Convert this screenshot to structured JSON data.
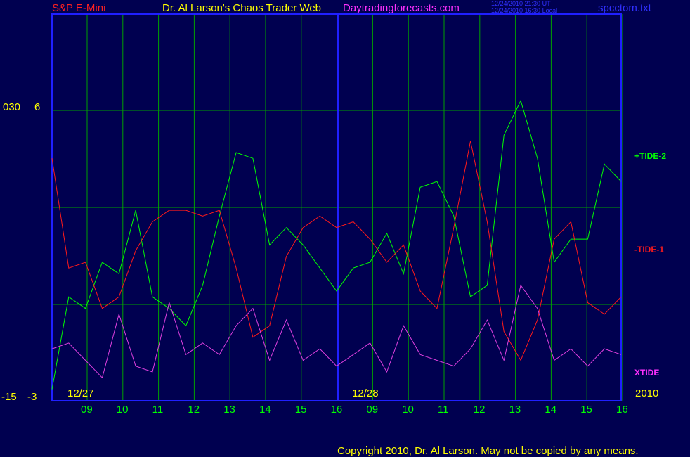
{
  "header": {
    "instrument": "S&P E-Mini",
    "title": "Dr. Al Larson's Chaos Trader Web",
    "site": "Daytradingforecasts.com",
    "ut_time": "12/24/2010 21:30 UT",
    "local_time": "12/24/2010 16:30 Local",
    "filename": "spcctom.txt"
  },
  "footer": {
    "copyright": "Copyright 2010, Dr. Al Larson. May not be copied by any means."
  },
  "colors": {
    "background": "#000050",
    "grid": "#00a000",
    "axis": "#2020ff",
    "tide2": "#00ff00",
    "tide1": "#ff1a1a",
    "xtide": "#e040e0",
    "label_yellow": "#ffff00",
    "label_red": "#ff2020",
    "label_magenta": "#ff30ff"
  },
  "chart_data": {
    "type": "line",
    "title": "",
    "xlabel": "",
    "ylabel": "",
    "y_axis_left_labels": [
      "030",
      "6",
      "-15",
      "-3"
    ],
    "date_labels": [
      "12/27",
      "12/28",
      "2010"
    ],
    "hour_labels": [
      "09",
      "10",
      "11",
      "12",
      "13",
      "14",
      "15",
      "16",
      "09",
      "10",
      "11",
      "12",
      "13",
      "14",
      "15",
      "16"
    ],
    "x": [
      9.0,
      9.5,
      9.75,
      10.0,
      10.5,
      10.75,
      10.8,
      11.0,
      11.5,
      11.75,
      12.0,
      13.0,
      13.5,
      14.0,
      15.0,
      15.5,
      16.0,
      16.25,
      16.5,
      9.0,
      9.5,
      10.0,
      10.1,
      10.25,
      11.0,
      11.5,
      12.0,
      13.0,
      13.5,
      14.0,
      14.5,
      15.0,
      15.05,
      15.5,
      16.0
    ],
    "series": [
      {
        "name": "+TIDE-2",
        "label_color": "#00ff00",
        "values": [
          -3.0,
          -1.4,
          -1.6,
          -0.8,
          -1.0,
          0.1,
          -1.4,
          -1.6,
          -1.9,
          -1.2,
          0.0,
          1.1,
          1.0,
          -0.5,
          -0.2,
          -0.5,
          -0.9,
          -1.3,
          -0.9,
          -0.8,
          -0.3,
          -1.0,
          0.5,
          0.6,
          0.0,
          -1.4,
          -1.2,
          1.4,
          2.0,
          1.0,
          -0.8,
          -0.4,
          -0.4,
          0.9,
          0.6
        ]
      },
      {
        "name": "-TIDE-1",
        "label_color": "#ff1a1a",
        "values": [
          1.0,
          -0.9,
          -0.8,
          -1.6,
          -1.4,
          -0.6,
          -0.1,
          0.1,
          0.1,
          0.0,
          0.1,
          -0.9,
          -2.1,
          -1.9,
          -0.7,
          -0.2,
          0.0,
          -0.2,
          -0.1,
          -0.4,
          -0.8,
          -0.5,
          -1.3,
          -1.6,
          -0.2,
          1.3,
          -0.1,
          -2.0,
          -2.5,
          -1.8,
          -0.4,
          -0.1,
          -1.5,
          -1.7,
          -1.4
        ]
      },
      {
        "name": "XTIDE",
        "label_color": "#ff30ff",
        "values": [
          -2.3,
          -2.2,
          -2.5,
          -2.8,
          -1.7,
          -2.6,
          -2.7,
          -1.5,
          -2.4,
          -2.2,
          -2.4,
          -1.9,
          -1.6,
          -2.5,
          -1.8,
          -2.5,
          -2.3,
          -2.6,
          -2.4,
          -2.2,
          -2.7,
          -1.9,
          -2.4,
          -2.5,
          -2.6,
          -2.3,
          -1.8,
          -2.5,
          -1.2,
          -1.6,
          -2.5,
          -2.3,
          -2.6,
          -2.3,
          -2.4
        ]
      }
    ],
    "ylim": [
      -3.2,
      3.5
    ],
    "grid": true,
    "legend": "right"
  }
}
